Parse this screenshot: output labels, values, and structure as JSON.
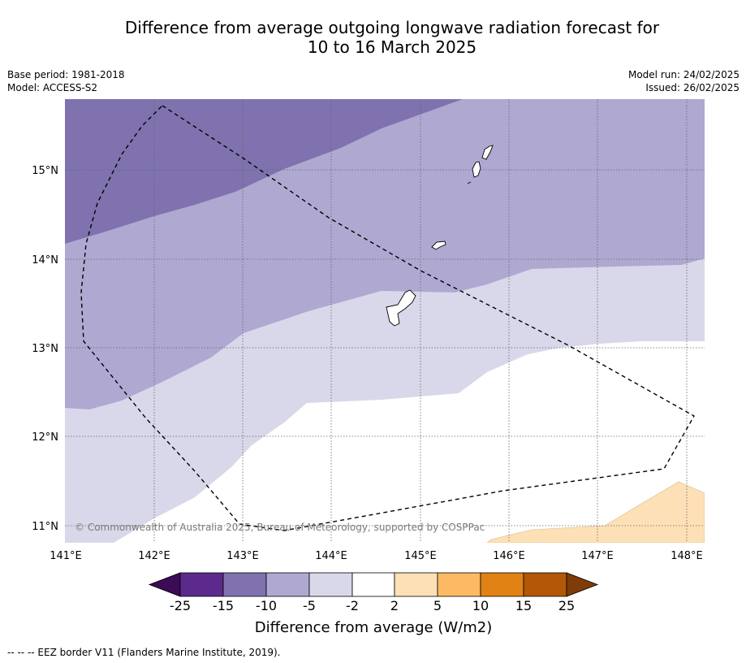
{
  "title_line1": "Difference from average outgoing longwave radiation forecast for",
  "title_line2": "10 to 16 March 2025",
  "base_period": "Base period: 1981-2018",
  "model": "Model: ACCESS-S2",
  "model_run": "Model run: 24/02/2025",
  "issued": "Issued: 26/02/2025",
  "copyright": "© Commonwealth of Australia 2025, Bureau of Meteorology, supported by COSPPac",
  "map": {
    "lat_labels": [
      "15°N",
      "14°N",
      "13°N",
      "12°N",
      "11°N"
    ],
    "lon_labels": [
      "141°E",
      "142°E",
      "143°E",
      "144°E",
      "145°E",
      "146°E",
      "147°E",
      "148°E"
    ]
  },
  "colorbar": {
    "title": "Difference from average (W/m2)",
    "ticks": [
      "-25",
      "-15",
      "-10",
      "-5",
      "-2",
      "2",
      "5",
      "10",
      "15",
      "25"
    ],
    "colors": {
      "lt_-25": "#3b0b55",
      "-25_-15": "#5c2a8c",
      "-15_-10": "#7f72ae",
      "-10_-5": "#afa8d1",
      "-5_-2": "#d8d8ea",
      "-2_2": "#ffffff",
      "2_5": "#fde0b6",
      "5_10": "#fdb963",
      "10_15": "#e08214",
      "15_25": "#b35806",
      "gt_25": "#7f3b08"
    }
  },
  "legend_note": "--  --  -- EEZ border V11 (Flanders Marine Institute, 2019)."
}
